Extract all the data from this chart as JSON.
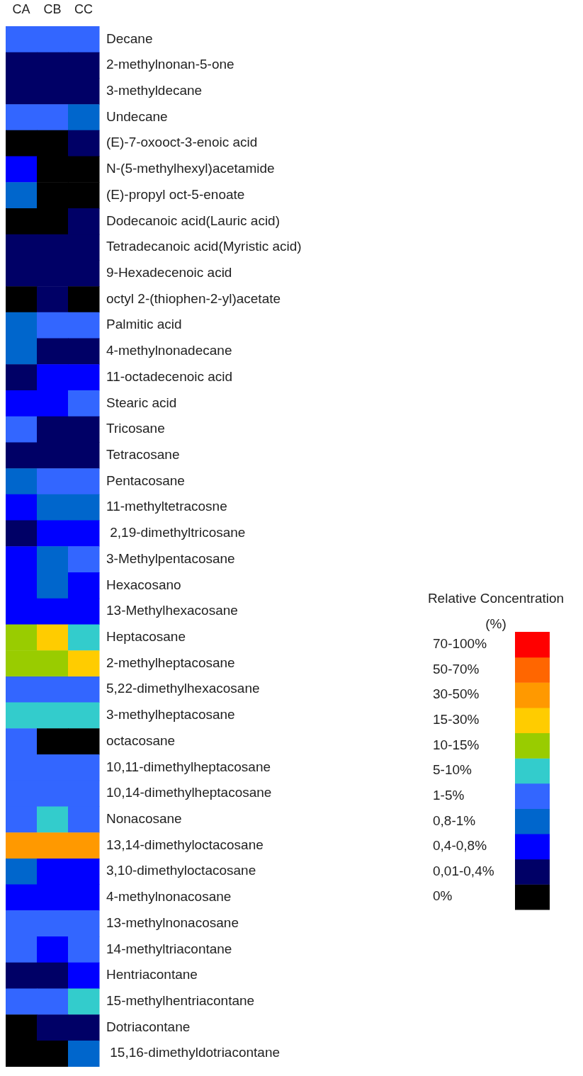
{
  "chart_data": {
    "type": "heatmap",
    "categories": [
      "CA",
      "CB",
      "CC"
    ],
    "y_categories": [
      "Decane",
      "2-methylnonan-5-one",
      "3-methyldecane",
      "Undecane",
      "(E)-7-oxooct-3-enoic acid",
      "N-(5-methylhexyl)acetamide",
      "(E)-propyl oct-5-enoate",
      "Dodecanoic acid(Lauric acid)",
      "Tetradecanoic acid(Myristic acid)",
      "9-Hexadecenoic acid",
      "octyl 2-(thiophen-2-yl)acetate",
      "Palmitic acid",
      "4-methylnonadecane",
      "11-octadecenoic acid",
      "Stearic acid",
      "Tricosane",
      "Tetracosane",
      "Pentacosane",
      "11-methyltetracosne",
      " 2,19-dimethyltricosane",
      "3-Methylpentacosane",
      "Hexacosano",
      "13-Methylhexacosane",
      "Heptacosane",
      "2-methylheptacosane",
      "5,22-dimethylhexacosane",
      "3-methylheptacosane",
      "octacosane",
      "10,11-dimethylheptacosane",
      "10,14-dimethylheptacosane",
      "Nonacosane",
      "13,14-dimethyloctacosane",
      "3,10-dimethyloctacosane",
      "4-methylnonacosane",
      "13-methylnonacosane",
      "14-methyltriacontane",
      "Hentriacontane",
      "15-methylhentriacontane",
      "Dotriacontane",
      " 15,16-dimethyldotriacontane"
    ],
    "cells": [
      [
        4,
        4,
        4
      ],
      [
        1,
        1,
        1
      ],
      [
        1,
        1,
        1
      ],
      [
        4,
        4,
        3
      ],
      [
        0,
        0,
        1
      ],
      [
        2,
        0,
        0
      ],
      [
        3,
        0,
        0
      ],
      [
        0,
        0,
        1
      ],
      [
        1,
        1,
        1
      ],
      [
        1,
        1,
        1
      ],
      [
        0,
        1,
        0
      ],
      [
        3,
        4,
        4
      ],
      [
        3,
        1,
        1
      ],
      [
        1,
        2,
        2
      ],
      [
        2,
        2,
        4
      ],
      [
        4,
        1,
        1
      ],
      [
        1,
        1,
        1
      ],
      [
        3,
        4,
        4
      ],
      [
        2,
        3,
        3
      ],
      [
        1,
        2,
        2
      ],
      [
        2,
        3,
        4
      ],
      [
        2,
        3,
        2
      ],
      [
        2,
        2,
        2
      ],
      [
        6,
        7,
        5
      ],
      [
        6,
        6,
        7
      ],
      [
        4,
        4,
        4
      ],
      [
        5,
        5,
        5
      ],
      [
        4,
        0,
        0
      ],
      [
        4,
        4,
        4
      ],
      [
        4,
        4,
        4
      ],
      [
        4,
        5,
        4
      ],
      [
        8,
        8,
        8
      ],
      [
        3,
        2,
        2
      ],
      [
        2,
        2,
        2
      ],
      [
        4,
        4,
        4
      ],
      [
        4,
        2,
        4
      ],
      [
        1,
        1,
        2
      ],
      [
        4,
        4,
        5
      ],
      [
        0,
        1,
        1
      ],
      [
        0,
        0,
        3
      ]
    ],
    "clabel": "Relative Concentration (%)",
    "clim": [
      -0.5,
      10.5
    ],
    "cticks": [
      {
        "value": 0,
        "label": "0%"
      },
      {
        "value": 1,
        "label": "0,01-0,4%"
      },
      {
        "value": 2,
        "label": "0,4-0,8%"
      },
      {
        "value": 3,
        "label": "0,8-1%"
      },
      {
        "value": 4,
        "label": "1-5%"
      },
      {
        "value": 5,
        "label": "5-10%"
      },
      {
        "value": 6,
        "label": "10-15%"
      },
      {
        "value": 7,
        "label": "15-30%"
      },
      {
        "value": 8,
        "label": "30-50%"
      },
      {
        "value": 9,
        "label": "50-70%"
      },
      {
        "value": 10,
        "label": "70-100%"
      }
    ],
    "colors": [
      "#000000",
      "#000066",
      "#0000ff",
      "#0066cc",
      "#3366ff",
      "#33cccc",
      "#99cc00",
      "#ffcc00",
      "#ff9900",
      "#ff6600",
      "#ff0000"
    ]
  }
}
